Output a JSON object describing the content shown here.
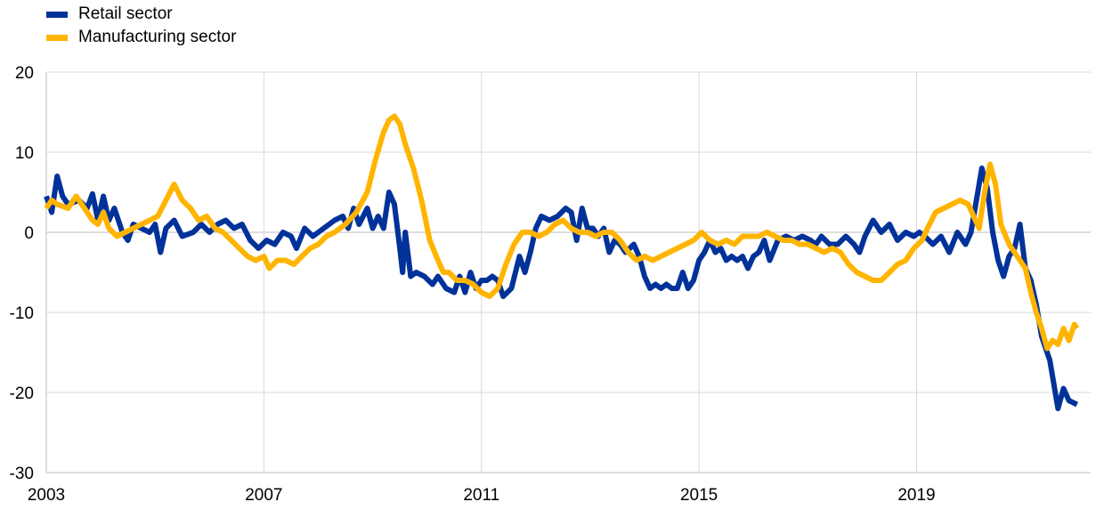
{
  "chart_data": {
    "type": "line",
    "title": "",
    "xlabel": "",
    "ylabel": "",
    "xlim": [
      2003.0,
      2022.2
    ],
    "ylim": [
      -30,
      20
    ],
    "y_ticks": [
      -30,
      -20,
      -10,
      0,
      10,
      20
    ],
    "y_tick_labels": [
      "-30",
      "-20",
      "-10",
      "0",
      "10",
      "20"
    ],
    "x_ticks": [
      2003,
      2007,
      2011,
      2015,
      2019
    ],
    "x_tick_labels": [
      "2003",
      "2007",
      "2011",
      "2015",
      "2019"
    ],
    "grid": true,
    "legend_position": "top-left",
    "series": [
      {
        "name": "Retail sector",
        "color": "#003299",
        "points": [
          [
            2003.0,
            4.5
          ],
          [
            2003.1,
            2.5
          ],
          [
            2003.2,
            7.0
          ],
          [
            2003.3,
            4.5
          ],
          [
            2003.4,
            3.5
          ],
          [
            2003.6,
            4.0
          ],
          [
            2003.75,
            3.0
          ],
          [
            2003.85,
            4.8
          ],
          [
            2003.95,
            1.5
          ],
          [
            2004.05,
            4.5
          ],
          [
            2004.15,
            1.5
          ],
          [
            2004.25,
            3.0
          ],
          [
            2004.4,
            0.0
          ],
          [
            2004.5,
            -1.0
          ],
          [
            2004.6,
            1.0
          ],
          [
            2004.75,
            0.5
          ],
          [
            2004.9,
            0.0
          ],
          [
            2005.0,
            1.0
          ],
          [
            2005.1,
            -2.5
          ],
          [
            2005.2,
            0.5
          ],
          [
            2005.35,
            1.5
          ],
          [
            2005.5,
            -0.5
          ],
          [
            2005.7,
            0.0
          ],
          [
            2005.85,
            1.0
          ],
          [
            2006.0,
            0.0
          ],
          [
            2006.15,
            1.0
          ],
          [
            2006.3,
            1.5
          ],
          [
            2006.45,
            0.5
          ],
          [
            2006.6,
            1.0
          ],
          [
            2006.75,
            -1.0
          ],
          [
            2006.9,
            -2.0
          ],
          [
            2007.05,
            -1.0
          ],
          [
            2007.2,
            -1.5
          ],
          [
            2007.35,
            0.0
          ],
          [
            2007.5,
            -0.5
          ],
          [
            2007.6,
            -2.0
          ],
          [
            2007.75,
            0.5
          ],
          [
            2007.9,
            -0.5
          ],
          [
            2008.1,
            0.5
          ],
          [
            2008.3,
            1.5
          ],
          [
            2008.45,
            2.0
          ],
          [
            2008.55,
            0.5
          ],
          [
            2008.65,
            3.0
          ],
          [
            2008.75,
            1.0
          ],
          [
            2008.9,
            3.0
          ],
          [
            2009.0,
            0.5
          ],
          [
            2009.1,
            2.0
          ],
          [
            2009.2,
            0.5
          ],
          [
            2009.3,
            5.0
          ],
          [
            2009.4,
            3.5
          ],
          [
            2009.5,
            -2.0
          ],
          [
            2009.55,
            -5.0
          ],
          [
            2009.6,
            0.0
          ],
          [
            2009.7,
            -5.5
          ],
          [
            2009.8,
            -5.0
          ],
          [
            2009.95,
            -5.5
          ],
          [
            2010.1,
            -6.5
          ],
          [
            2010.2,
            -5.5
          ],
          [
            2010.35,
            -7.0
          ],
          [
            2010.5,
            -7.5
          ],
          [
            2010.6,
            -5.5
          ],
          [
            2010.7,
            -7.5
          ],
          [
            2010.8,
            -5.0
          ],
          [
            2010.9,
            -7.0
          ],
          [
            2011.0,
            -6.0
          ],
          [
            2011.1,
            -6.0
          ],
          [
            2011.2,
            -5.5
          ],
          [
            2011.3,
            -6.0
          ],
          [
            2011.4,
            -8.0
          ],
          [
            2011.55,
            -7.0
          ],
          [
            2011.7,
            -3.0
          ],
          [
            2011.8,
            -5.0
          ],
          [
            2011.9,
            -2.5
          ],
          [
            2012.0,
            0.5
          ],
          [
            2012.1,
            2.0
          ],
          [
            2012.25,
            1.5
          ],
          [
            2012.4,
            2.0
          ],
          [
            2012.55,
            3.0
          ],
          [
            2012.65,
            2.5
          ],
          [
            2012.75,
            -1.0
          ],
          [
            2012.85,
            3.0
          ],
          [
            2012.95,
            0.5
          ],
          [
            2013.05,
            0.5
          ],
          [
            2013.15,
            -0.5
          ],
          [
            2013.25,
            0.5
          ],
          [
            2013.35,
            -2.5
          ],
          [
            2013.45,
            -1.0
          ],
          [
            2013.55,
            -1.5
          ],
          [
            2013.65,
            -2.5
          ],
          [
            2013.8,
            -1.5
          ],
          [
            2013.9,
            -3.0
          ],
          [
            2014.0,
            -5.5
          ],
          [
            2014.1,
            -7.0
          ],
          [
            2014.2,
            -6.5
          ],
          [
            2014.3,
            -7.0
          ],
          [
            2014.4,
            -6.5
          ],
          [
            2014.5,
            -7.0
          ],
          [
            2014.6,
            -7.0
          ],
          [
            2014.7,
            -5.0
          ],
          [
            2014.8,
            -7.0
          ],
          [
            2014.9,
            -6.0
          ],
          [
            2015.0,
            -3.5
          ],
          [
            2015.1,
            -2.5
          ],
          [
            2015.2,
            -1.0
          ],
          [
            2015.3,
            -2.5
          ],
          [
            2015.4,
            -2.0
          ],
          [
            2015.5,
            -3.5
          ],
          [
            2015.6,
            -3.0
          ],
          [
            2015.7,
            -3.5
          ],
          [
            2015.8,
            -3.0
          ],
          [
            2015.9,
            -4.5
          ],
          [
            2016.0,
            -3.0
          ],
          [
            2016.1,
            -2.5
          ],
          [
            2016.2,
            -1.0
          ],
          [
            2016.3,
            -3.5
          ],
          [
            2016.45,
            -1.0
          ],
          [
            2016.6,
            -0.5
          ],
          [
            2016.75,
            -1.0
          ],
          [
            2016.9,
            -0.5
          ],
          [
            2017.05,
            -1.0
          ],
          [
            2017.15,
            -1.5
          ],
          [
            2017.25,
            -0.5
          ],
          [
            2017.4,
            -1.5
          ],
          [
            2017.55,
            -1.5
          ],
          [
            2017.7,
            -0.5
          ],
          [
            2017.85,
            -1.5
          ],
          [
            2017.95,
            -2.5
          ],
          [
            2018.05,
            -0.5
          ],
          [
            2018.2,
            1.5
          ],
          [
            2018.35,
            0.0
          ],
          [
            2018.5,
            1.0
          ],
          [
            2018.65,
            -1.0
          ],
          [
            2018.8,
            0.0
          ],
          [
            2018.95,
            -0.5
          ],
          [
            2019.05,
            0.0
          ],
          [
            2019.15,
            -0.5
          ],
          [
            2019.3,
            -1.5
          ],
          [
            2019.45,
            -0.5
          ],
          [
            2019.6,
            -2.5
          ],
          [
            2019.75,
            0.0
          ],
          [
            2019.9,
            -1.5
          ],
          [
            2020.0,
            0.0
          ],
          [
            2020.1,
            4.0
          ],
          [
            2020.2,
            8.0
          ],
          [
            2020.3,
            5.5
          ],
          [
            2020.4,
            0.0
          ],
          [
            2020.5,
            -3.5
          ],
          [
            2020.6,
            -5.5
          ],
          [
            2020.7,
            -3.0
          ],
          [
            2020.8,
            -2.0
          ],
          [
            2020.9,
            1.0
          ],
          [
            2021.0,
            -4.5
          ],
          [
            2021.1,
            -6.0
          ],
          [
            2021.2,
            -9.0
          ],
          [
            2021.3,
            -13.0
          ],
          [
            2021.45,
            -16.0
          ],
          [
            2021.6,
            -22.0
          ],
          [
            2021.7,
            -19.5
          ],
          [
            2021.8,
            -21.0
          ],
          [
            2021.95,
            -21.5
          ]
        ]
      },
      {
        "name": "Manufacturing sector",
        "color": "#ffb400",
        "points": [
          [
            2003.0,
            3.0
          ],
          [
            2003.1,
            4.0
          ],
          [
            2003.2,
            3.5
          ],
          [
            2003.4,
            3.0
          ],
          [
            2003.55,
            4.5
          ],
          [
            2003.7,
            3.0
          ],
          [
            2003.85,
            1.5
          ],
          [
            2003.95,
            1.0
          ],
          [
            2004.05,
            2.5
          ],
          [
            2004.15,
            0.5
          ],
          [
            2004.3,
            -0.5
          ],
          [
            2004.45,
            0.0
          ],
          [
            2004.6,
            0.5
          ],
          [
            2004.75,
            1.0
          ],
          [
            2004.9,
            1.5
          ],
          [
            2005.05,
            2.0
          ],
          [
            2005.2,
            4.0
          ],
          [
            2005.35,
            6.0
          ],
          [
            2005.5,
            4.0
          ],
          [
            2005.65,
            3.0
          ],
          [
            2005.8,
            1.5
          ],
          [
            2005.95,
            2.0
          ],
          [
            2006.1,
            0.5
          ],
          [
            2006.25,
            0.0
          ],
          [
            2006.4,
            -1.0
          ],
          [
            2006.55,
            -2.0
          ],
          [
            2006.7,
            -3.0
          ],
          [
            2006.85,
            -3.5
          ],
          [
            2007.0,
            -3.0
          ],
          [
            2007.1,
            -4.5
          ],
          [
            2007.25,
            -3.5
          ],
          [
            2007.4,
            -3.5
          ],
          [
            2007.55,
            -4.0
          ],
          [
            2007.7,
            -3.0
          ],
          [
            2007.85,
            -2.0
          ],
          [
            2008.0,
            -1.5
          ],
          [
            2008.15,
            -0.5
          ],
          [
            2008.3,
            0.0
          ],
          [
            2008.5,
            1.0
          ],
          [
            2008.7,
            2.5
          ],
          [
            2008.9,
            5.0
          ],
          [
            2009.05,
            9.0
          ],
          [
            2009.2,
            12.5
          ],
          [
            2009.3,
            14.0
          ],
          [
            2009.4,
            14.5
          ],
          [
            2009.5,
            13.5
          ],
          [
            2009.6,
            11.0
          ],
          [
            2009.75,
            8.0
          ],
          [
            2009.9,
            4.0
          ],
          [
            2010.05,
            -1.0
          ],
          [
            2010.2,
            -3.5
          ],
          [
            2010.3,
            -5.0
          ],
          [
            2010.4,
            -5.0
          ],
          [
            2010.55,
            -6.0
          ],
          [
            2010.7,
            -6.0
          ],
          [
            2010.85,
            -6.5
          ],
          [
            2011.0,
            -7.5
          ],
          [
            2011.15,
            -8.0
          ],
          [
            2011.3,
            -7.0
          ],
          [
            2011.45,
            -4.0
          ],
          [
            2011.6,
            -1.5
          ],
          [
            2011.75,
            0.0
          ],
          [
            2011.9,
            0.0
          ],
          [
            2012.05,
            -0.5
          ],
          [
            2012.2,
            0.0
          ],
          [
            2012.35,
            1.0
          ],
          [
            2012.5,
            1.5
          ],
          [
            2012.65,
            0.5
          ],
          [
            2012.8,
            0.0
          ],
          [
            2012.95,
            0.0
          ],
          [
            2013.1,
            -0.5
          ],
          [
            2013.25,
            0.0
          ],
          [
            2013.4,
            0.0
          ],
          [
            2013.55,
            -1.0
          ],
          [
            2013.7,
            -2.5
          ],
          [
            2013.85,
            -3.5
          ],
          [
            2014.0,
            -3.0
          ],
          [
            2014.15,
            -3.5
          ],
          [
            2014.3,
            -3.0
          ],
          [
            2014.45,
            -2.5
          ],
          [
            2014.6,
            -2.0
          ],
          [
            2014.75,
            -1.5
          ],
          [
            2014.9,
            -1.0
          ],
          [
            2015.05,
            0.0
          ],
          [
            2015.2,
            -1.0
          ],
          [
            2015.35,
            -1.5
          ],
          [
            2015.5,
            -1.0
          ],
          [
            2015.65,
            -1.5
          ],
          [
            2015.8,
            -0.5
          ],
          [
            2015.95,
            -0.5
          ],
          [
            2016.1,
            -0.5
          ],
          [
            2016.25,
            0.0
          ],
          [
            2016.4,
            -0.5
          ],
          [
            2016.55,
            -1.0
          ],
          [
            2016.7,
            -1.0
          ],
          [
            2016.85,
            -1.5
          ],
          [
            2017.0,
            -1.5
          ],
          [
            2017.15,
            -2.0
          ],
          [
            2017.3,
            -2.5
          ],
          [
            2017.45,
            -2.0
          ],
          [
            2017.6,
            -2.5
          ],
          [
            2017.75,
            -4.0
          ],
          [
            2017.9,
            -5.0
          ],
          [
            2018.05,
            -5.5
          ],
          [
            2018.2,
            -6.0
          ],
          [
            2018.35,
            -6.0
          ],
          [
            2018.5,
            -5.0
          ],
          [
            2018.65,
            -4.0
          ],
          [
            2018.8,
            -3.5
          ],
          [
            2018.95,
            -2.0
          ],
          [
            2019.1,
            -1.0
          ],
          [
            2019.2,
            0.5
          ],
          [
            2019.35,
            2.5
          ],
          [
            2019.5,
            3.0
          ],
          [
            2019.65,
            3.5
          ],
          [
            2019.8,
            4.0
          ],
          [
            2019.95,
            3.5
          ],
          [
            2020.05,
            2.0
          ],
          [
            2020.15,
            0.5
          ],
          [
            2020.25,
            5.0
          ],
          [
            2020.35,
            8.5
          ],
          [
            2020.45,
            6.0
          ],
          [
            2020.55,
            1.0
          ],
          [
            2020.7,
            -1.5
          ],
          [
            2020.85,
            -3.0
          ],
          [
            2021.0,
            -4.5
          ],
          [
            2021.1,
            -7.5
          ],
          [
            2021.2,
            -10.0
          ],
          [
            2021.3,
            -12.0
          ],
          [
            2021.4,
            -14.5
          ],
          [
            2021.5,
            -13.5
          ],
          [
            2021.6,
            -14.0
          ],
          [
            2021.7,
            -12.0
          ],
          [
            2021.8,
            -13.5
          ],
          [
            2021.9,
            -11.5
          ],
          [
            2021.95,
            -12.0
          ]
        ]
      }
    ]
  }
}
